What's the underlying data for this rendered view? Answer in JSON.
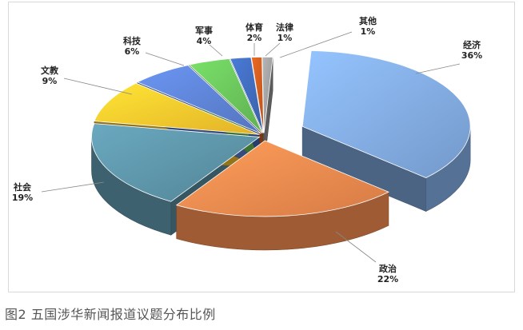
{
  "caption": "图2 五国涉华新闻报道议题分布比例",
  "chart_data": {
    "type": "pie",
    "style": "3d-exploded",
    "categories": [
      "经济",
      "政治",
      "社会",
      "文教",
      "科技",
      "军事",
      "体育",
      "法律",
      "其他"
    ],
    "values": [
      36,
      22,
      19,
      9,
      6,
      4,
      2,
      1,
      1
    ],
    "value_labels": [
      "36%",
      "22%",
      "19%",
      "9%",
      "6%",
      "4%",
      "2%",
      "1%",
      "1%"
    ],
    "colors": [
      "#7ea6dc",
      "#e8864c",
      "#5a8fa3",
      "#f6c22c",
      "#5b7fcf",
      "#67bf59",
      "#3f68b6",
      "#c85a1e",
      "#9a9a9a"
    ],
    "legend": "none",
    "grid": false
  }
}
